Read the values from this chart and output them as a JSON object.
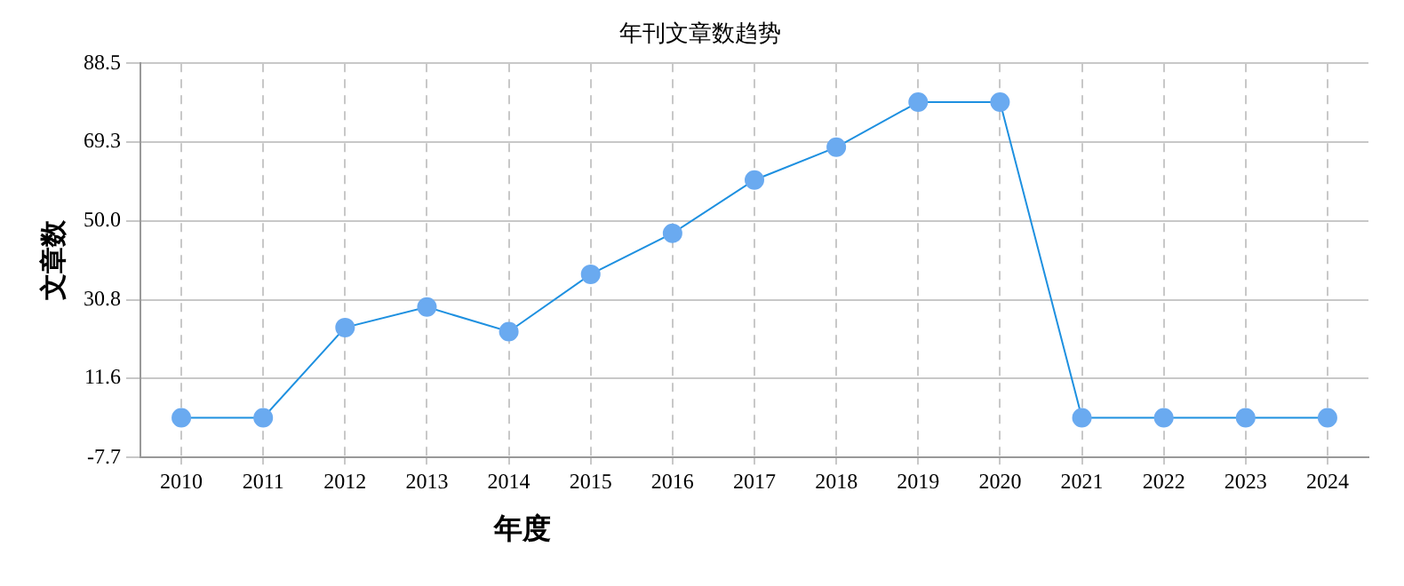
{
  "chart_data": {
    "type": "line",
    "title": "年刊文章数趋势",
    "xlabel": "年度",
    "ylabel": "文章数",
    "categories": [
      "2010",
      "2011",
      "2012",
      "2013",
      "2014",
      "2015",
      "2016",
      "2017",
      "2018",
      "2019",
      "2020",
      "2021",
      "2022",
      "2023",
      "2024"
    ],
    "series": [
      {
        "color": "#1e90e0",
        "values": [
          2,
          2,
          24,
          29,
          23,
          37,
          47,
          60,
          68,
          79,
          79,
          2,
          2,
          2,
          2
        ]
      }
    ],
    "ylim": [
      -7.7,
      88.5
    ],
    "yticks": [
      {
        "value": -7.7,
        "label": "-7.7"
      },
      {
        "value": 11.6,
        "label": "11.6"
      },
      {
        "value": 30.8,
        "label": "30.8"
      },
      {
        "value": 50.0,
        "label": "50.0"
      },
      {
        "value": 69.3,
        "label": "69.3"
      },
      {
        "value": 88.5,
        "label": "88.5"
      }
    ],
    "grid": true,
    "marker": "circle",
    "legend": false
  }
}
